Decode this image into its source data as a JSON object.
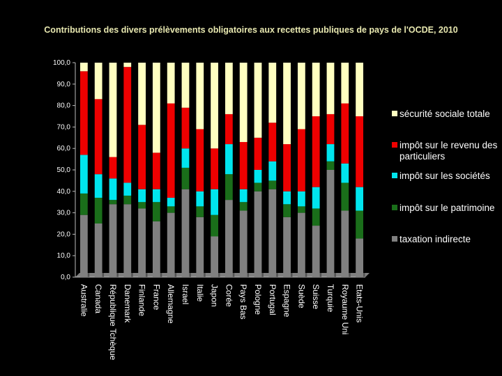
{
  "chart_data": {
    "type": "bar",
    "stacked": true,
    "title": "Contributions des divers prélèvements obligatoires aux recettes publiques de pays de l'OCDE, 2010",
    "xlabel": "",
    "ylabel": "",
    "ylim": [
      0,
      100
    ],
    "yticks": [
      "100,0",
      "90,0",
      "80,0",
      "70,0",
      "60,0",
      "50,0",
      "40,0",
      "30,0",
      "20,0",
      "10,0",
      "0,0"
    ],
    "legend_position": "right",
    "categories": [
      "Australie",
      "Canada",
      "République Tchèque",
      "Danemark",
      "Finlande",
      "France",
      "Allemagne",
      "Israel",
      "Italie",
      "Japon",
      "Corée",
      "Pays Bas",
      "Pologne",
      "Portugal",
      "Espagne",
      "Suède",
      "Suisse",
      "Turquie",
      "Royaume Uni",
      "Etats-Unis"
    ],
    "series": [
      {
        "name": "taxation indirecte",
        "color": "#808080",
        "values": [
          29,
          25,
          34,
          34,
          32,
          26,
          30,
          41,
          28,
          19,
          36,
          31,
          40,
          41,
          28,
          30,
          24,
          50,
          31,
          18
        ]
      },
      {
        "name": "impôt sur le patrimoine",
        "color": "#1a6e1a",
        "values": [
          10,
          12,
          2,
          4,
          3,
          9,
          3,
          10,
          5,
          10,
          12,
          4,
          4,
          4,
          6,
          3,
          8,
          4,
          13,
          13
        ]
      },
      {
        "name": "impôt sur les sociétés",
        "color": "#00e5ee",
        "values": [
          18,
          11,
          10,
          6,
          6,
          6,
          4,
          9,
          7,
          12,
          14,
          6,
          6,
          9,
          6,
          7,
          10,
          8,
          9,
          11
        ]
      },
      {
        "name": "impôt sur le revenu des particuliers",
        "color": "#ee0000",
        "values": [
          39,
          35,
          10,
          54,
          30,
          17,
          44,
          19,
          29,
          19,
          14,
          22,
          15,
          18,
          22,
          29,
          33,
          14,
          28,
          33
        ]
      },
      {
        "name": "sécurité sociale totale",
        "color": "#ffffc0",
        "values": [
          4,
          17,
          44,
          2,
          29,
          42,
          19,
          21,
          31,
          40,
          24,
          37,
          35,
          28,
          38,
          31,
          25,
          24,
          19,
          25
        ]
      }
    ],
    "legend_order": [
      "sécurité sociale totale",
      "impôt sur le revenu des particuliers",
      "impôt sur les sociétés",
      "impôt sur le patrimoine",
      "taxation indirecte"
    ]
  }
}
